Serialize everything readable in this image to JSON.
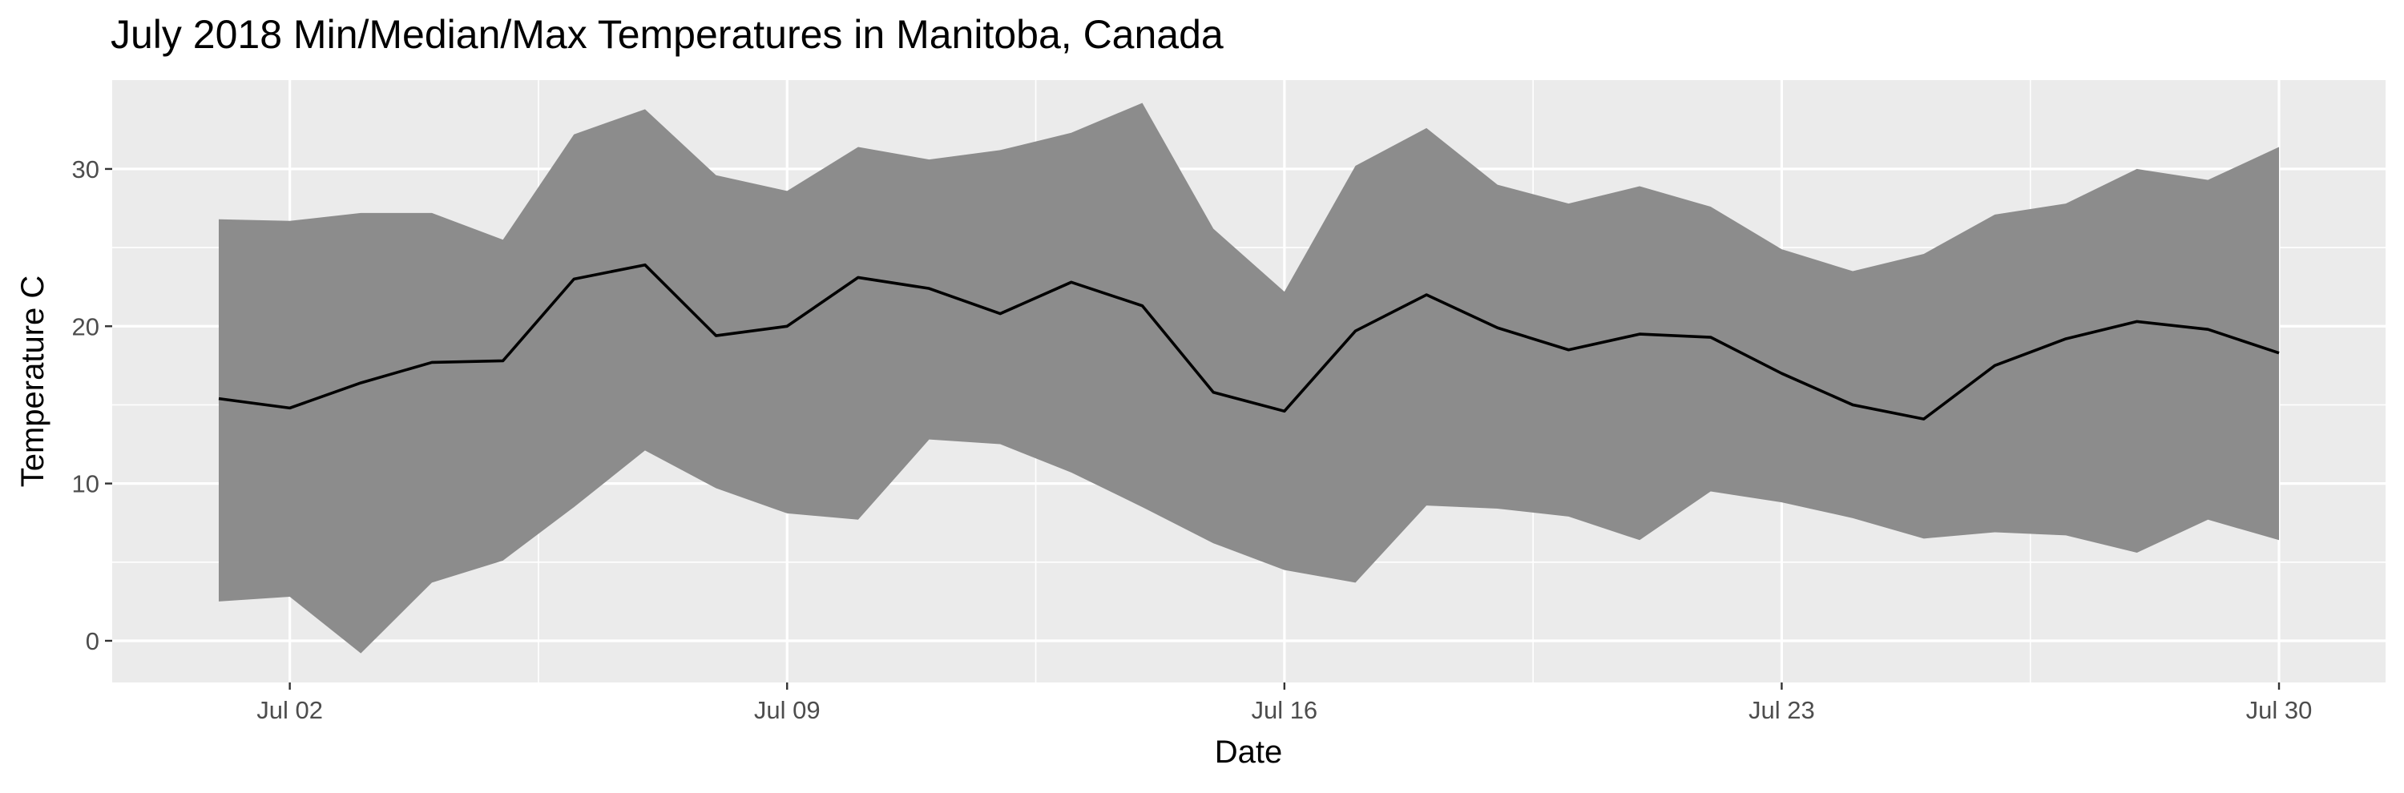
{
  "chart_data": {
    "type": "area",
    "title": "July 2018 Min/Median/Max Temperatures in Manitoba, Canada",
    "xlabel": "Date",
    "ylabel": "Temperature C",
    "x": [
      "2018-07-01",
      "2018-07-02",
      "2018-07-03",
      "2018-07-04",
      "2018-07-05",
      "2018-07-06",
      "2018-07-07",
      "2018-07-08",
      "2018-07-09",
      "2018-07-10",
      "2018-07-11",
      "2018-07-12",
      "2018-07-13",
      "2018-07-14",
      "2018-07-15",
      "2018-07-16",
      "2018-07-17",
      "2018-07-18",
      "2018-07-19",
      "2018-07-20",
      "2018-07-21",
      "2018-07-22",
      "2018-07-23",
      "2018-07-24",
      "2018-07-25",
      "2018-07-26",
      "2018-07-27",
      "2018-07-28",
      "2018-07-29",
      "2018-07-30"
    ],
    "series": [
      {
        "role": "max",
        "values": [
          26.8,
          26.7,
          27.2,
          27.2,
          25.5,
          32.2,
          33.8,
          29.6,
          28.6,
          31.4,
          30.6,
          31.2,
          32.3,
          34.2,
          26.2,
          22.2,
          30.2,
          32.6,
          29.0,
          27.8,
          28.9,
          27.6,
          24.9,
          23.5,
          24.6,
          27.1,
          27.8,
          30.0,
          29.3,
          31.4
        ]
      },
      {
        "role": "median",
        "values": [
          15.4,
          14.8,
          16.4,
          17.7,
          17.8,
          23.0,
          23.9,
          19.4,
          20.0,
          23.1,
          22.4,
          20.8,
          22.8,
          21.3,
          15.8,
          14.6,
          19.7,
          22.0,
          19.9,
          18.5,
          19.5,
          19.3,
          17.0,
          15.0,
          14.1,
          17.5,
          19.2,
          20.3,
          19.8,
          18.3
        ]
      },
      {
        "role": "min",
        "values": [
          2.5,
          2.8,
          -0.8,
          3.7,
          5.1,
          8.5,
          12.1,
          9.7,
          8.1,
          7.7,
          12.8,
          12.5,
          10.7,
          8.5,
          6.2,
          4.5,
          3.7,
          8.6,
          8.4,
          7.9,
          6.4,
          9.5,
          8.8,
          7.8,
          6.5,
          6.9,
          6.7,
          5.6,
          7.7,
          6.4
        ]
      }
    ],
    "xticks": [
      {
        "date": "2018-07-02",
        "label": "Jul 02"
      },
      {
        "date": "2018-07-09",
        "label": "Jul 09"
      },
      {
        "date": "2018-07-16",
        "label": "Jul 16"
      },
      {
        "date": "2018-07-23",
        "label": "Jul 23"
      },
      {
        "date": "2018-07-30",
        "label": "Jul 30"
      }
    ],
    "yticks": [
      0,
      10,
      20,
      30
    ],
    "ylim": [
      -2.65,
      35.65
    ],
    "xlim": [
      "2018-06-29T12:00",
      "2018-07-31T12:00"
    ],
    "grid": true,
    "colors": {
      "panel": "#ebebeb",
      "grid": "#ffffff",
      "ribbon": "#8c8c8c",
      "line": "#000000",
      "tick_label": "#4d4d4d"
    }
  }
}
